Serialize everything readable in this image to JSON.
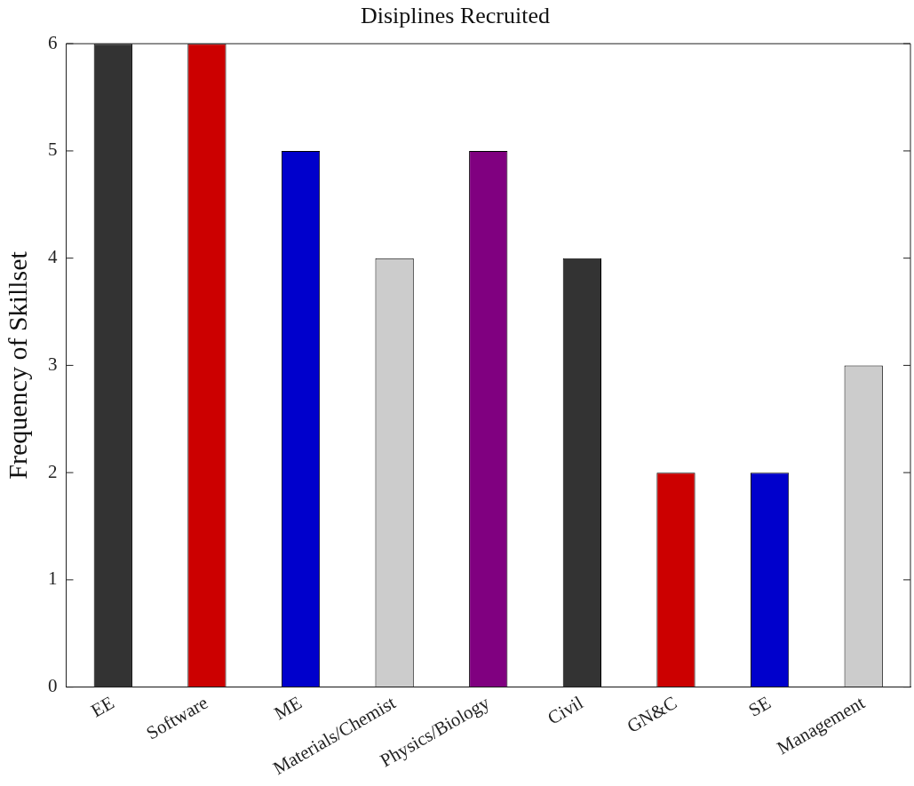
{
  "chart_data": {
    "type": "bar",
    "title": "Disiplines Recruited",
    "ylabel": "Frequency of Skillset",
    "categories": [
      "EE",
      "Software",
      "ME",
      "Materials/Chemist",
      "Physics/Biology",
      "Civil",
      "GN&C",
      "SE",
      "Management"
    ],
    "values": [
      6,
      6,
      5,
      4,
      5,
      4,
      2,
      2,
      3
    ],
    "colors": [
      "#333333",
      "#cc0000",
      "#0000cc",
      "#cccccc",
      "#800080",
      "#333333",
      "#cc0000",
      "#0000cc",
      "#cccccc"
    ],
    "ylim": [
      0,
      6
    ],
    "yticks": [
      0,
      1,
      2,
      3,
      4,
      5,
      6
    ],
    "grid": false,
    "legend": false
  }
}
